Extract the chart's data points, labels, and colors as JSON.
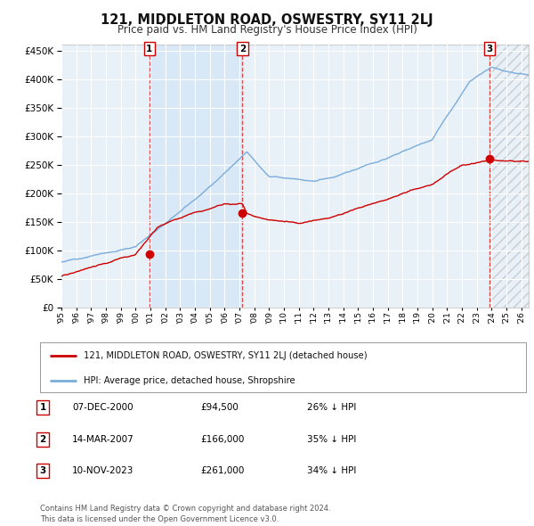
{
  "title": "121, MIDDLETON ROAD, OSWESTRY, SY11 2LJ",
  "subtitle": "Price paid vs. HM Land Registry's House Price Index (HPI)",
  "ylim": [
    0,
    460000
  ],
  "yticks": [
    0,
    50000,
    100000,
    150000,
    200000,
    250000,
    300000,
    350000,
    400000,
    450000
  ],
  "background_color": "#ffffff",
  "plot_bg_color": "#e8f0f8",
  "grid_color": "#ffffff",
  "hpi_color": "#7aaddb",
  "price_color": "#cc0000",
  "sale_points": [
    {
      "label": "1",
      "x": 2000.93,
      "price": 94500
    },
    {
      "label": "2",
      "x": 2007.2,
      "price": 166000
    },
    {
      "label": "3",
      "x": 2023.86,
      "price": 261000
    }
  ],
  "shade_x1": 2000.93,
  "shade_x2": 2007.2,
  "hatch_x": 2023.86,
  "legend_price_label": "121, MIDDLETON ROAD, OSWESTRY, SY11 2LJ (detached house)",
  "legend_hpi_label": "HPI: Average price, detached house, Shropshire",
  "table_rows": [
    {
      "num": "1",
      "date": "07-DEC-2000",
      "price": "£94,500",
      "pct": "26% ↓ HPI"
    },
    {
      "num": "2",
      "date": "14-MAR-2007",
      "price": "£166,000",
      "pct": "35% ↓ HPI"
    },
    {
      "num": "3",
      "date": "10-NOV-2023",
      "price": "£261,000",
      "pct": "34% ↓ HPI"
    }
  ],
  "footer": "Contains HM Land Registry data © Crown copyright and database right 2024.\nThis data is licensed under the Open Government Licence v3.0.",
  "xmin": 1995,
  "xmax": 2026.5
}
